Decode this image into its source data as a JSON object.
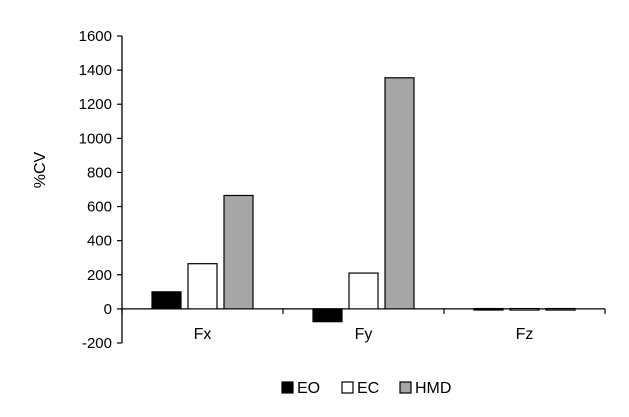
{
  "chart_data": {
    "type": "bar",
    "categories": [
      "Fx",
      "Fy",
      "Fz"
    ],
    "series": [
      {
        "name": "EO",
        "values": [
          100,
          -75,
          2
        ],
        "color": "#000000"
      },
      {
        "name": "EC",
        "values": [
          265,
          210,
          2
        ],
        "color": "#ffffff"
      },
      {
        "name": "HMD",
        "values": [
          665,
          1355,
          2
        ],
        "color": "#a6a6a6"
      }
    ],
    "ylabel": "%CV",
    "xlabel": "",
    "ylim": [
      -200,
      1600
    ],
    "yticks": [
      -200,
      0,
      200,
      400,
      600,
      800,
      1000,
      1200,
      1400,
      1600
    ],
    "grid": false,
    "legend_position": "bottom"
  }
}
